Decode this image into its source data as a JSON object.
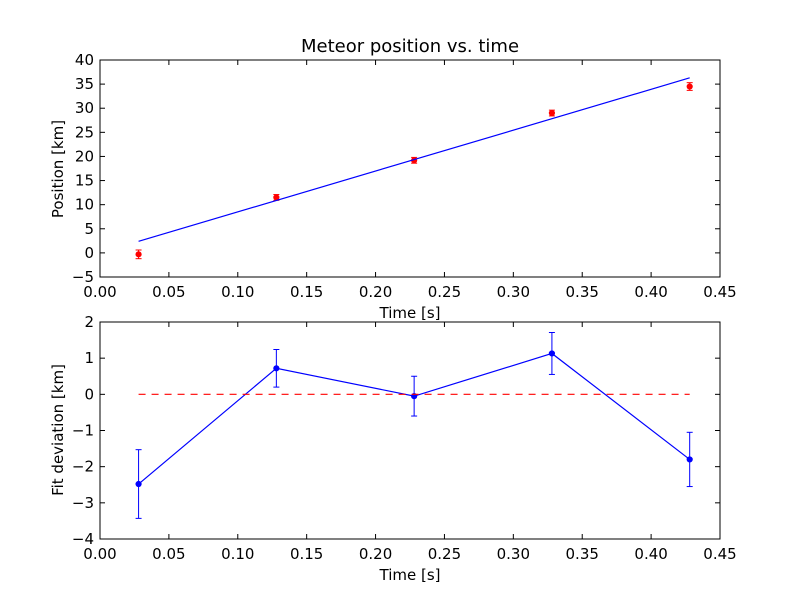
{
  "chart_data": [
    {
      "type": "scatter",
      "title": "Meteor position vs. time",
      "xlabel": "Time [s]",
      "ylabel": "Position [km]",
      "xlim": [
        0.0,
        0.45
      ],
      "ylim": [
        -5,
        40
      ],
      "xticks": [
        "0.00",
        "0.05",
        "0.10",
        "0.15",
        "0.20",
        "0.25",
        "0.30",
        "0.35",
        "0.40",
        "0.45"
      ],
      "yticks": [
        "−5",
        "0",
        "5",
        "10",
        "15",
        "20",
        "25",
        "30",
        "35",
        "40"
      ],
      "grid": false,
      "series": [
        {
          "kind": "errorbar-points",
          "color": "#ff0000",
          "x": [
            0.028,
            0.128,
            0.228,
            0.328,
            0.428
          ],
          "y": [
            -0.3,
            11.5,
            19.2,
            29.0,
            34.5
          ],
          "yerr": [
            0.9,
            0.6,
            0.6,
            0.6,
            0.8
          ]
        },
        {
          "kind": "fit-line",
          "color": "#0000ff",
          "x": [
            0.028,
            0.428
          ],
          "y": [
            2.4,
            36.3
          ]
        }
      ]
    },
    {
      "type": "line",
      "title": "",
      "xlabel": "Time [s]",
      "ylabel": "Fit deviation [km]",
      "xlim": [
        0.0,
        0.45
      ],
      "ylim": [
        -4,
        2
      ],
      "xticks": [
        "0.00",
        "0.05",
        "0.10",
        "0.15",
        "0.20",
        "0.25",
        "0.30",
        "0.35",
        "0.40",
        "0.45"
      ],
      "yticks": [
        "−4",
        "−3",
        "−2",
        "−1",
        "0",
        "1",
        "2"
      ],
      "grid": false,
      "series": [
        {
          "kind": "errorbar-line",
          "color": "#0000ff",
          "x": [
            0.028,
            0.128,
            0.228,
            0.328,
            0.428
          ],
          "y": [
            -2.48,
            0.72,
            -0.05,
            1.13,
            -1.8
          ],
          "yerr": [
            0.95,
            0.52,
            0.55,
            0.58,
            0.75
          ]
        },
        {
          "kind": "reference-dashed",
          "color": "#ff0000",
          "x": [
            0.028,
            0.428
          ],
          "y": [
            0,
            0
          ]
        }
      ]
    }
  ]
}
